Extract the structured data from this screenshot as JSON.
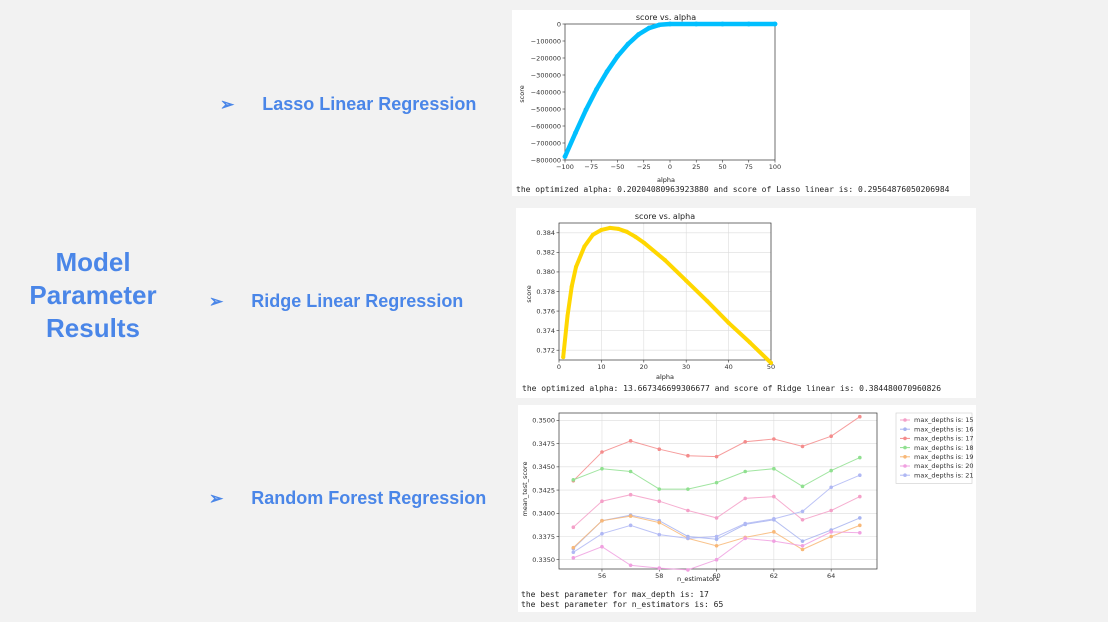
{
  "slide": {
    "title_lines": [
      "Model",
      "Parameter",
      "Results"
    ]
  },
  "rows": [
    {
      "label": "Lasso Linear Regression",
      "arrow": "➢"
    },
    {
      "label": "Ridge Linear Regression",
      "arrow": "➢"
    },
    {
      "label": "Random Forest Regression",
      "arrow": "➢"
    }
  ],
  "outputs": {
    "lasso": "the optimized alpha:  0.20204080963923880  and score of Lasso linear is:  0.29564876050206984",
    "ridge": "the optimized alpha:  13.667346699306677  and score of Ridge linear is:  0.384480070960826",
    "rf_line1": "the best parameter for max_depth is: 17",
    "rf_line2": "the best parameter for n_estimators is: 65"
  },
  "colors": {
    "accent": "#4a86e8",
    "lasso_line": "#00bfff",
    "ridge_line": "#ffd700"
  },
  "chart_data": [
    {
      "type": "scatter",
      "title": "score vs. alpha",
      "xlabel": "alpha",
      "ylabel": "score",
      "xlim": [
        -100,
        100
      ],
      "ylim": [
        -800000,
        0
      ],
      "x_ticks": [
        -100,
        -75,
        -50,
        -25,
        0,
        25,
        50,
        75,
        100
      ],
      "y_ticks": [
        0,
        -100000,
        -200000,
        -300000,
        -400000,
        -500000,
        -600000,
        -700000,
        -800000
      ],
      "grid": false,
      "x": [
        -100,
        -90,
        -80,
        -70,
        -60,
        -50,
        -40,
        -30,
        -20,
        -10,
        0,
        25,
        50,
        75,
        100
      ],
      "values": [
        -780000,
        -640000,
        -505000,
        -385000,
        -280000,
        -190000,
        -118000,
        -62000,
        -24000,
        -5000,
        0,
        0,
        0,
        0,
        0
      ]
    },
    {
      "type": "line",
      "title": "score vs. alpha",
      "xlabel": "alpha",
      "ylabel": "score",
      "xlim": [
        0,
        50
      ],
      "ylim": [
        0.371,
        0.385
      ],
      "x_ticks": [
        0,
        10,
        20,
        30,
        40,
        50
      ],
      "y_ticks": [
        0.372,
        0.374,
        0.376,
        0.378,
        0.38,
        0.382,
        0.384
      ],
      "grid": true,
      "x": [
        1,
        2,
        3,
        4,
        6,
        8,
        10,
        12,
        14,
        16,
        18,
        20,
        25,
        30,
        35,
        40,
        45,
        50
      ],
      "values": [
        0.3713,
        0.3755,
        0.3785,
        0.3805,
        0.3826,
        0.3838,
        0.3843,
        0.3845,
        0.3844,
        0.3841,
        0.3836,
        0.383,
        0.3812,
        0.3791,
        0.377,
        0.3748,
        0.3728,
        0.3707
      ]
    },
    {
      "type": "line",
      "xlabel": "n_estimators",
      "ylabel": "mean_test_score",
      "xlim": [
        54.5,
        65.6
      ],
      "ylim": [
        0.334,
        0.3508
      ],
      "x_ticks": [
        56,
        58,
        60,
        62,
        64
      ],
      "y_ticks": [
        0.335,
        0.3375,
        0.34,
        0.3425,
        0.345,
        0.3475,
        0.35
      ],
      "grid": true,
      "legend": "right",
      "categories": [
        55,
        56,
        57,
        58,
        59,
        60,
        61,
        62,
        63,
        64,
        65
      ],
      "series": [
        {
          "name": "max_depths is: 15",
          "color": "#f4a0c8",
          "values": [
            0.3385,
            0.3413,
            0.342,
            0.3413,
            0.3403,
            0.3395,
            0.3416,
            0.3418,
            0.3393,
            0.3403,
            0.3418
          ]
        },
        {
          "name": "max_depths is: 16",
          "color": "#a8b4f0",
          "values": [
            0.3362,
            0.3392,
            0.3398,
            0.3392,
            0.3375,
            0.3372,
            0.3388,
            0.3393,
            0.337,
            0.3382,
            0.3395
          ]
        },
        {
          "name": "max_depths is: 17",
          "color": "#f48c8c",
          "values": [
            0.3435,
            0.3466,
            0.3478,
            0.3469,
            0.3462,
            0.3461,
            0.3477,
            0.348,
            0.3472,
            0.3483,
            0.3504
          ]
        },
        {
          "name": "max_depths is: 18",
          "color": "#90e090",
          "values": [
            0.3436,
            0.3448,
            0.3445,
            0.3426,
            0.3426,
            0.3433,
            0.3445,
            0.3448,
            0.3429,
            0.3446,
            0.346
          ]
        },
        {
          "name": "max_depths is: 19",
          "color": "#f8b878",
          "values": [
            0.3363,
            0.3392,
            0.3397,
            0.339,
            0.3373,
            0.3365,
            0.3374,
            0.338,
            0.3361,
            0.3375,
            0.3387
          ]
        },
        {
          "name": "max_depths is: 20",
          "color": "#f0a0e0",
          "values": [
            0.3352,
            0.3364,
            0.3344,
            0.3341,
            0.3339,
            0.335,
            0.3373,
            0.337,
            0.3365,
            0.338,
            0.3379
          ]
        },
        {
          "name": "max_depths is: 21",
          "color": "#b0b8f4",
          "values": [
            0.3358,
            0.3378,
            0.3387,
            0.3377,
            0.3373,
            0.3375,
            0.3389,
            0.3394,
            0.3402,
            0.3428,
            0.3441
          ]
        }
      ]
    }
  ]
}
